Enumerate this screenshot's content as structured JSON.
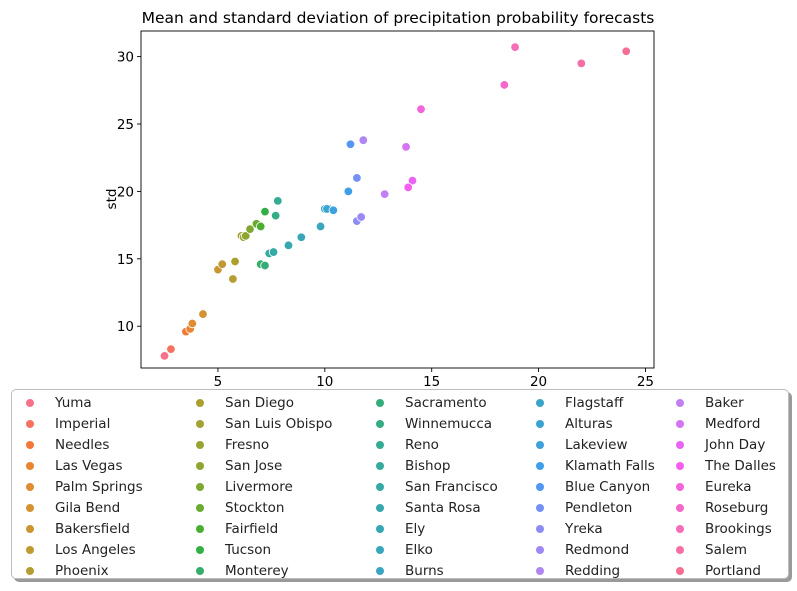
{
  "chart_data": {
    "type": "scatter",
    "title": "Mean and standard deviation of precipitation probability forecasts",
    "xlabel": "",
    "ylabel": "std",
    "xlim": [
      1.4,
      25.4
    ],
    "ylim": [
      6.9,
      31.9
    ],
    "xticks": [
      5,
      10,
      15,
      20,
      25
    ],
    "yticks": [
      10,
      15,
      20,
      25,
      30
    ],
    "grid": false,
    "legend_position": "bottom",
    "series": [
      {
        "name": "Yuma",
        "color": "#f77189",
        "x": 2.5,
        "y": 7.8
      },
      {
        "name": "Imperial",
        "color": "#f6725e",
        "x": 2.8,
        "y": 8.3
      },
      {
        "name": "Needles",
        "color": "#f4773a",
        "x": 3.5,
        "y": 9.6
      },
      {
        "name": "Las Vegas",
        "color": "#e98431",
        "x": 3.7,
        "y": 9.8
      },
      {
        "name": "Palm Springs",
        "color": "#df8c32",
        "x": 3.8,
        "y": 10.2
      },
      {
        "name": "Gila Bend",
        "color": "#d49232",
        "x": 4.3,
        "y": 10.9
      },
      {
        "name": "Bakersfield",
        "color": "#c99632",
        "x": 5.0,
        "y": 14.2
      },
      {
        "name": "Los Angeles",
        "color": "#bf9a32",
        "x": 5.2,
        "y": 14.6
      },
      {
        "name": "Phoenix",
        "color": "#b49d32",
        "x": 5.7,
        "y": 13.5
      },
      {
        "name": "San Diego",
        "color": "#ab9f32",
        "x": 5.8,
        "y": 14.8
      },
      {
        "name": "San Luis Obispo",
        "color": "#a3a131",
        "x": 6.1,
        "y": 16.7
      },
      {
        "name": "Fresno",
        "color": "#99a331",
        "x": 6.2,
        "y": 16.6
      },
      {
        "name": "San Jose",
        "color": "#8ea531",
        "x": 6.3,
        "y": 16.7
      },
      {
        "name": "Livermore",
        "color": "#7fa831",
        "x": 6.5,
        "y": 17.2
      },
      {
        "name": "Stockton",
        "color": "#6aac31",
        "x": 6.8,
        "y": 17.6
      },
      {
        "name": "Fairfield",
        "color": "#4aaf31",
        "x": 7.0,
        "y": 17.4
      },
      {
        "name": "Tucson",
        "color": "#32b045",
        "x": 7.2,
        "y": 18.5
      },
      {
        "name": "Monterey",
        "color": "#34ae68",
        "x": 7.0,
        "y": 14.6
      },
      {
        "name": "Sacramento",
        "color": "#35ad7b",
        "x": 7.2,
        "y": 14.5
      },
      {
        "name": "Winnemucca",
        "color": "#35ac88",
        "x": 7.7,
        "y": 18.2
      },
      {
        "name": "Reno",
        "color": "#36ab93",
        "x": 7.8,
        "y": 19.3
      },
      {
        "name": "Bishop",
        "color": "#36aa9c",
        "x": 7.4,
        "y": 15.4
      },
      {
        "name": "San Francisco",
        "color": "#37a9a5",
        "x": 7.6,
        "y": 15.5
      },
      {
        "name": "Santa Rosa",
        "color": "#37a8ad",
        "x": 8.3,
        "y": 16.0
      },
      {
        "name": "Ely",
        "color": "#38a7b5",
        "x": 8.9,
        "y": 16.6
      },
      {
        "name": "Elko",
        "color": "#38a6bc",
        "x": 9.8,
        "y": 17.4
      },
      {
        "name": "Burns",
        "color": "#39a5c3",
        "x": 10.0,
        "y": 18.7
      },
      {
        "name": "Flagstaff",
        "color": "#3aa4ca",
        "x": 10.2,
        "y": 18.7
      },
      {
        "name": "Alturas",
        "color": "#3ba3d3",
        "x": 10.1,
        "y": 18.7
      },
      {
        "name": "Lakeview",
        "color": "#3da1dd",
        "x": 10.4,
        "y": 18.6
      },
      {
        "name": "Klamath Falls",
        "color": "#3f9ee8",
        "x": 11.1,
        "y": 20.0
      },
      {
        "name": "Blue Canyon",
        "color": "#5496f4",
        "x": 11.2,
        "y": 23.5
      },
      {
        "name": "Pendleton",
        "color": "#7591f4",
        "x": 11.5,
        "y": 21.0
      },
      {
        "name": "Yreka",
        "color": "#8c8cf4",
        "x": 11.5,
        "y": 17.8
      },
      {
        "name": "Redmond",
        "color": "#9e88f4",
        "x": 11.7,
        "y": 18.1
      },
      {
        "name": "Redding",
        "color": "#b085f4",
        "x": 11.8,
        "y": 23.8
      },
      {
        "name": "Baker",
        "color": "#c27ff4",
        "x": 12.8,
        "y": 19.8
      },
      {
        "name": "Medford",
        "color": "#d474f4",
        "x": 13.8,
        "y": 23.3
      },
      {
        "name": "John Day",
        "color": "#e864f4",
        "x": 14.1,
        "y": 20.8
      },
      {
        "name": "The Dalles",
        "color": "#f45ff0",
        "x": 13.9,
        "y": 20.3
      },
      {
        "name": "Eureka",
        "color": "#f464dc",
        "x": 14.5,
        "y": 26.1
      },
      {
        "name": "Roseburg",
        "color": "#f468ca",
        "x": 18.4,
        "y": 27.9
      },
      {
        "name": "Brookings",
        "color": "#f56cb8",
        "x": 18.9,
        "y": 30.7
      },
      {
        "name": "Salem",
        "color": "#f56ea5",
        "x": 22.0,
        "y": 29.5
      },
      {
        "name": "Portland",
        "color": "#f66f93",
        "x": 24.1,
        "y": 30.4
      }
    ]
  }
}
